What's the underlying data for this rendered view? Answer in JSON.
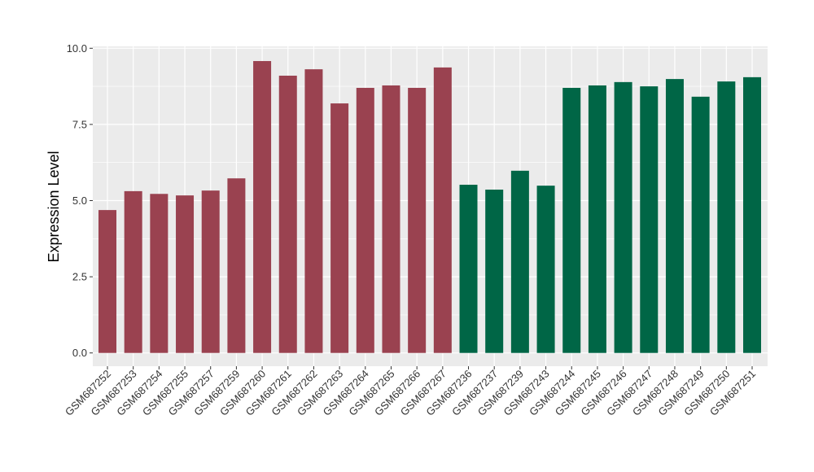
{
  "chart_data": {
    "type": "bar",
    "title": "",
    "xlabel": "",
    "ylabel": "Expression Level",
    "ylim": [
      0,
      10
    ],
    "yticks": [
      "0.0",
      "2.5",
      "5.0",
      "7.5",
      "10.0"
    ],
    "ytick_values": [
      0,
      2.5,
      5,
      7.5,
      10
    ],
    "grid": true,
    "categories": [
      "GSM687252",
      "GSM687253",
      "GSM687254",
      "GSM687255",
      "GSM687257",
      "GSM687259",
      "GSM687260",
      "GSM687261",
      "GSM687262",
      "GSM687263",
      "GSM687264",
      "GSM687265",
      "GSM687266",
      "GSM687267",
      "GSM687236",
      "GSM687237",
      "GSM687239",
      "GSM687243",
      "GSM687244",
      "GSM687245",
      "GSM687246",
      "GSM687247",
      "GSM687248",
      "GSM687249",
      "GSM687250",
      "GSM687251"
    ],
    "values": [
      4.69,
      5.31,
      5.22,
      5.17,
      5.33,
      5.73,
      9.58,
      9.1,
      9.31,
      8.19,
      8.7,
      8.78,
      8.7,
      9.37,
      5.52,
      5.36,
      5.98,
      5.49,
      8.7,
      8.78,
      8.89,
      8.75,
      8.99,
      8.41,
      8.91,
      9.05
    ],
    "groups": [
      0,
      0,
      0,
      0,
      0,
      0,
      0,
      0,
      0,
      0,
      0,
      0,
      0,
      0,
      1,
      1,
      1,
      1,
      1,
      1,
      1,
      1,
      1,
      1,
      1,
      1
    ],
    "group_colors": [
      "#9A4250",
      "#006646"
    ]
  }
}
